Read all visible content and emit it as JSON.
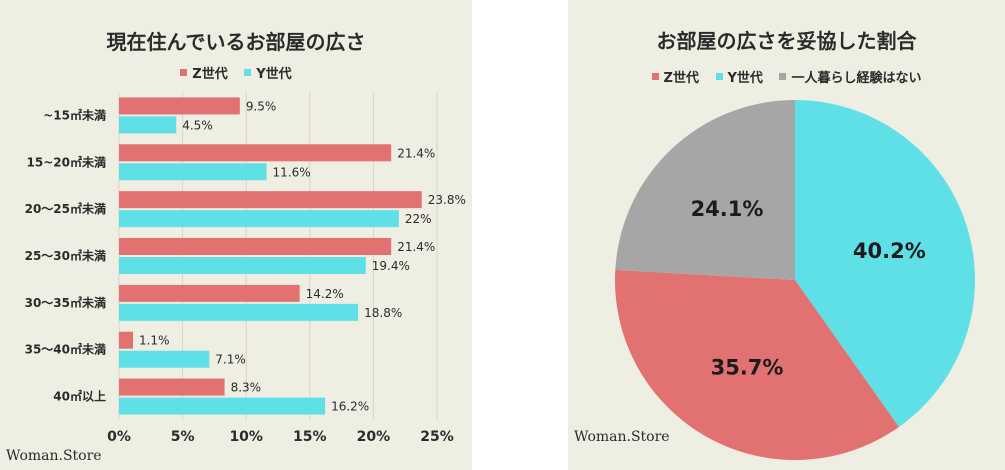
{
  "colors": {
    "z": "#e27272",
    "y": "#5fe0e6",
    "none": "#a6a6a6",
    "grid": "#d6d5c8",
    "text": "#2b2b2b"
  },
  "chart_data": [
    {
      "type": "bar",
      "orientation": "horizontal",
      "title": "現在住んでいるお部屋の広さ",
      "categories": [
        "~15㎡未満",
        "15~20㎡未満",
        "20〜25㎡未満",
        "25〜30㎡未満",
        "30〜35㎡未満",
        "35〜40㎡未満",
        "40㎡以上"
      ],
      "series": [
        {
          "name": "Z世代",
          "color": "#e27272",
          "values": [
            9.5,
            21.4,
            23.8,
            21.4,
            14.2,
            1.1,
            8.3
          ],
          "labels": [
            "9.5%",
            "21.4%",
            "23.8%",
            "21.4%",
            "14.2%",
            "1.1%",
            "8.3%"
          ]
        },
        {
          "name": "Y世代",
          "color": "#5fe0e6",
          "values": [
            4.5,
            11.6,
            22,
            19.4,
            18.8,
            7.1,
            16.2
          ],
          "labels": [
            "4.5%",
            "11.6%",
            "22%",
            "19.4%",
            "18.8%",
            "7.1%",
            "16.2%"
          ]
        }
      ],
      "xlim": [
        0,
        25
      ],
      "xticks": [
        "0%",
        "5%",
        "10%",
        "15%",
        "20%",
        "25%"
      ],
      "legend": "top-center",
      "grid": true
    },
    {
      "type": "pie",
      "title": "お部屋の広さを妥協した割合",
      "slices": [
        {
          "name": "Y世代",
          "value": 40.2,
          "label": "40.2%",
          "color": "#5fe0e6"
        },
        {
          "name": "Z世代",
          "value": 35.7,
          "label": "35.7%",
          "color": "#e27272"
        },
        {
          "name": "一人暮らし経験はない",
          "value": 24.1,
          "label": "24.1%",
          "color": "#a6a6a6"
        }
      ],
      "legend_order": [
        "Z世代",
        "Y世代",
        "一人暮らし経験はない"
      ],
      "legend": "top-center"
    }
  ],
  "watermark": "Woman.Store"
}
